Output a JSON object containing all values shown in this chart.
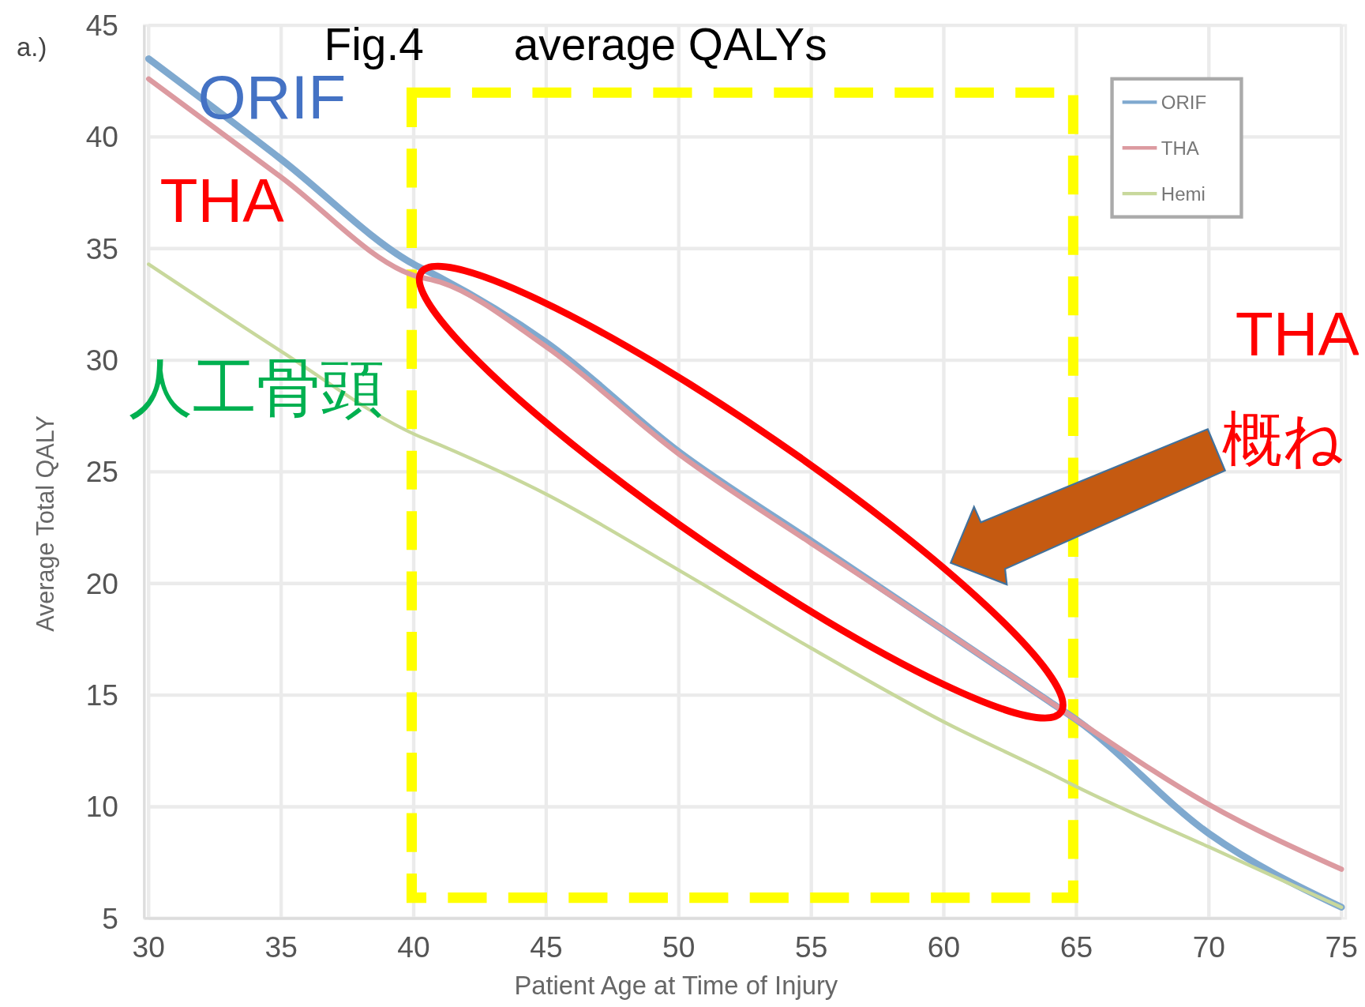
{
  "chart_data": {
    "type": "line",
    "title": "Fig.4　　average QALYs",
    "xlabel": "Patient Age at Time of Injury",
    "ylabel": "Average Total QALY",
    "x": [
      30,
      35,
      40,
      41,
      45,
      50,
      55,
      60,
      64,
      65,
      70,
      75
    ],
    "series": [
      {
        "name": "ORIF",
        "color": "#7fa9cf",
        "values": [
          43.5,
          39.0,
          34.3,
          33.7,
          30.8,
          25.9,
          21.9,
          17.9,
          14.7,
          13.9,
          8.8,
          5.5
        ]
      },
      {
        "name": "THA",
        "color": "#dc9aa0",
        "values": [
          42.6,
          38.2,
          33.8,
          33.5,
          30.6,
          25.8,
          21.8,
          17.9,
          14.7,
          13.9,
          10.1,
          7.2
        ]
      },
      {
        "name": "Hemi",
        "color": "#c8d89c",
        "values": [
          34.3,
          30.4,
          26.7,
          26.2,
          24.0,
          20.6,
          17.1,
          13.8,
          11.5,
          10.9,
          8.2,
          5.5
        ]
      }
    ],
    "xlim": [
      30,
      75
    ],
    "ylim": [
      5,
      45
    ],
    "xticks": [
      30,
      35,
      40,
      45,
      50,
      55,
      60,
      65,
      70,
      75
    ],
    "yticks": [
      5,
      10,
      15,
      20,
      25,
      30,
      35,
      40,
      45
    ],
    "grid": true,
    "legend": "top right",
    "annotations": [
      "a.)",
      "ORIF",
      "THA",
      "人工骨頭",
      "THA",
      "概ね"
    ]
  }
}
